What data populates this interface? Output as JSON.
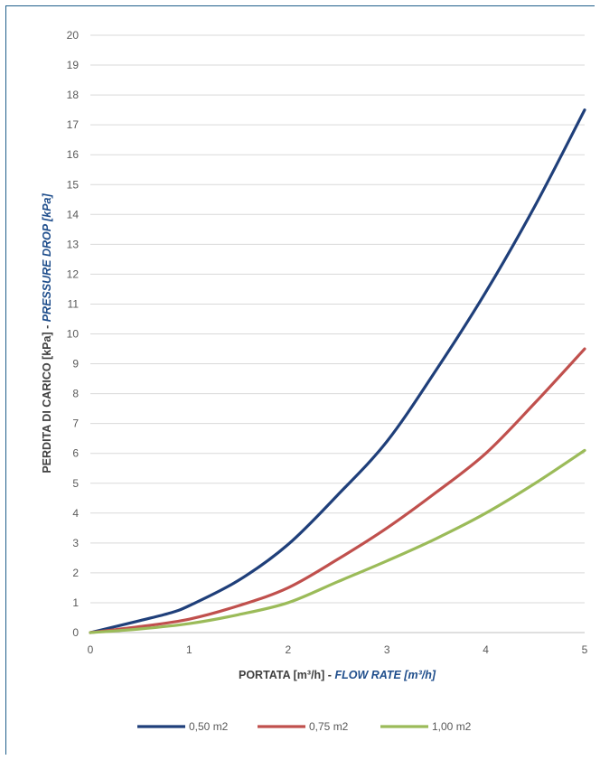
{
  "chart_data": {
    "type": "line",
    "xlabel": {
      "main": "PORTATA [m³/h] - ",
      "emphasis": "FLOW RATE [m³/h]"
    },
    "ylabel": {
      "main": "PERDITA DI CARICO [kPa] - ",
      "emphasis": "PRESSURE DROP [kPa]"
    },
    "xlim": [
      0,
      5
    ],
    "ylim": [
      0,
      20
    ],
    "x_ticks": [
      0,
      1,
      2,
      3,
      4,
      5
    ],
    "y_ticks": [
      0,
      1,
      2,
      3,
      4,
      5,
      6,
      7,
      8,
      9,
      10,
      11,
      12,
      13,
      14,
      15,
      16,
      17,
      18,
      19,
      20
    ],
    "grid": "horizontal",
    "legend_position": "bottom",
    "series": [
      {
        "name": "0,50 m2",
        "color": "#1f3f7a",
        "x": [
          0,
          0.5,
          0.8,
          1.0,
          1.5,
          2.0,
          2.5,
          3.0,
          3.5,
          4.0,
          4.5,
          5.0
        ],
        "values": [
          0,
          0.4,
          0.65,
          0.9,
          1.75,
          2.95,
          4.6,
          6.4,
          8.8,
          11.4,
          14.3,
          17.5
        ]
      },
      {
        "name": "0,75 m2",
        "color": "#c0504d",
        "x": [
          0,
          0.5,
          1.0,
          1.5,
          2.0,
          2.5,
          3.0,
          3.5,
          4.0,
          4.5,
          5.0
        ],
        "values": [
          0,
          0.2,
          0.45,
          0.9,
          1.5,
          2.45,
          3.5,
          4.7,
          6.0,
          7.7,
          9.5
        ]
      },
      {
        "name": "1,00 m2",
        "color": "#9bbb59",
        "x": [
          0,
          0.5,
          1.0,
          1.5,
          2.0,
          2.5,
          3.0,
          3.5,
          4.0,
          4.5,
          5.0
        ],
        "values": [
          0,
          0.12,
          0.3,
          0.6,
          1.0,
          1.7,
          2.4,
          3.15,
          4.0,
          5.0,
          6.1
        ]
      }
    ]
  }
}
